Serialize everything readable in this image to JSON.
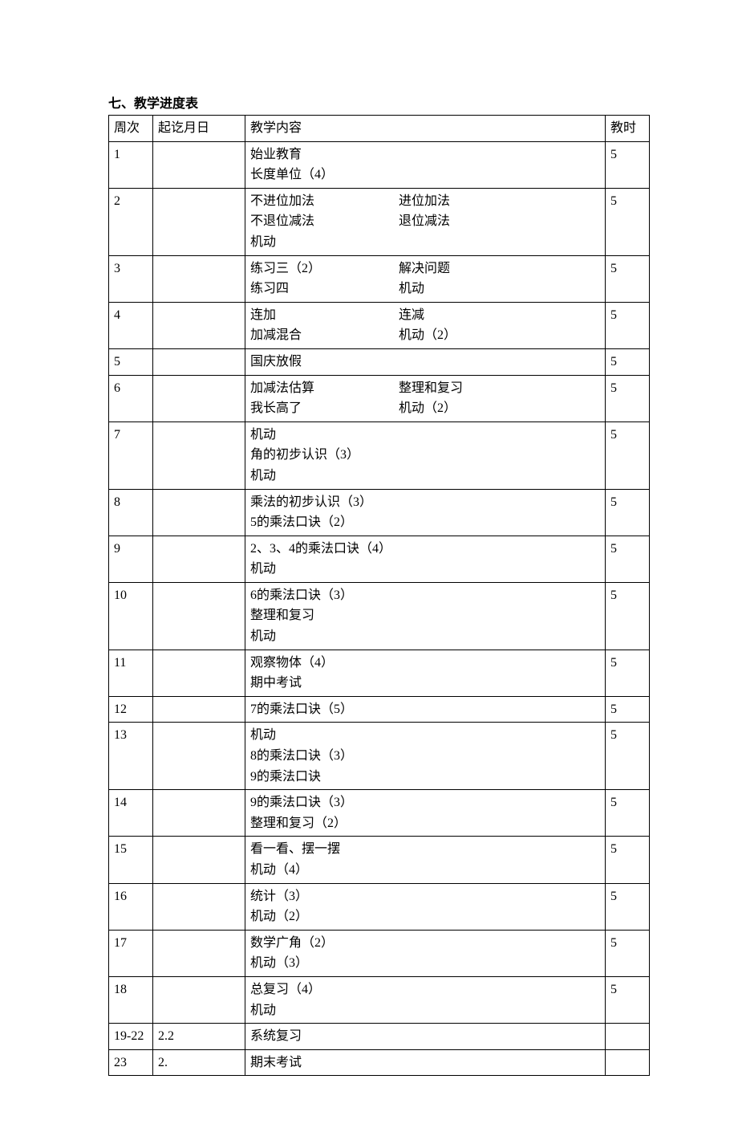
{
  "title": "七、教学进度表",
  "headers": {
    "week": "周次",
    "date": "起讫月日",
    "content": "教学内容",
    "hours": "教时"
  },
  "rows": [
    {
      "week": "1",
      "date": "",
      "content": [
        {
          "left": "始业教育"
        },
        {
          "left": "长度单位（4）"
        }
      ],
      "hours": "5"
    },
    {
      "week": "2",
      "date": "",
      "content": [
        {
          "left": "不进位加法",
          "right": "进位加法"
        },
        {
          "left": "不退位减法",
          "right": "退位减法"
        },
        {
          "left": "机动"
        }
      ],
      "hours": "5"
    },
    {
      "week": "3",
      "date": "",
      "content": [
        {
          "left": "练习三（2）",
          "right": "解决问题"
        },
        {
          "left": "练习四",
          "right": "机动"
        }
      ],
      "hours": "5"
    },
    {
      "week": "4",
      "date": "",
      "content": [
        {
          "left": "连加",
          "right": "连减"
        },
        {
          "left": "加减混合",
          "right": "机动（2）"
        }
      ],
      "hours": "5"
    },
    {
      "week": "5",
      "date": "",
      "content": [
        {
          "left": "国庆放假"
        }
      ],
      "hours": "5"
    },
    {
      "week": "6",
      "date": "",
      "content": [
        {
          "left": "加减法估算",
          "right": "整理和复习"
        },
        {
          "left": "我长高了",
          "right": "机动（2）"
        }
      ],
      "hours": "5"
    },
    {
      "week": "7",
      "date": "",
      "content": [
        {
          "left": "机动"
        },
        {
          "left": "角的初步认识（3）"
        },
        {
          "left": "机动"
        }
      ],
      "hours": "5"
    },
    {
      "week": "8",
      "date": "",
      "content": [
        {
          "left": "乘法的初步认识（3）"
        },
        {
          "left": "5的乘法口诀（2）"
        }
      ],
      "hours": "5"
    },
    {
      "week": "9",
      "date": "",
      "content": [
        {
          "left": "2、3、4的乘法口诀（4）"
        },
        {
          "left": "机动"
        }
      ],
      "hours": "5"
    },
    {
      "week": "10",
      "date": "",
      "content": [
        {
          "left": "6的乘法口诀（3）"
        },
        {
          "left": "整理和复习"
        },
        {
          "left": "机动"
        }
      ],
      "hours": "5"
    },
    {
      "week": "11",
      "date": "",
      "content": [
        {
          "left": "观察物体（4）"
        },
        {
          "left": "期中考试"
        }
      ],
      "hours": "5"
    },
    {
      "week": "12",
      "date": "",
      "content": [
        {
          "left": "7的乘法口诀（5）"
        }
      ],
      "hours": "5"
    },
    {
      "week": "13",
      "date": "",
      "content": [
        {
          "left": "机动"
        },
        {
          "left": "8的乘法口诀（3）"
        },
        {
          "left": "9的乘法口诀"
        }
      ],
      "hours": "5"
    },
    {
      "week": "14",
      "date": "",
      "content": [
        {
          "left": "9的乘法口诀（3）"
        },
        {
          "left": "整理和复习（2）"
        }
      ],
      "hours": "5"
    },
    {
      "week": "15",
      "date": "",
      "content": [
        {
          "left": "看一看、摆一摆"
        },
        {
          "left": "机动（4）"
        }
      ],
      "hours": "5"
    },
    {
      "week": "16",
      "date": "",
      "content": [
        {
          "left": "统计（3）"
        },
        {
          "left": "机动（2）"
        }
      ],
      "hours": "5"
    },
    {
      "week": "17",
      "date": "",
      "content": [
        {
          "left": "数学广角（2）"
        },
        {
          "left": "机动（3）"
        }
      ],
      "hours": "5"
    },
    {
      "week": "18",
      "date": "",
      "content": [
        {
          "left": "总复习（4）"
        },
        {
          "left": "机动"
        }
      ],
      "hours": "5"
    },
    {
      "week": "19-22",
      "date": "2.2",
      "content": [
        {
          "left": "系统复习"
        }
      ],
      "hours": ""
    },
    {
      "week": "23",
      "date": "2.",
      "content": [
        {
          "left": "期末考试"
        }
      ],
      "hours": ""
    }
  ]
}
